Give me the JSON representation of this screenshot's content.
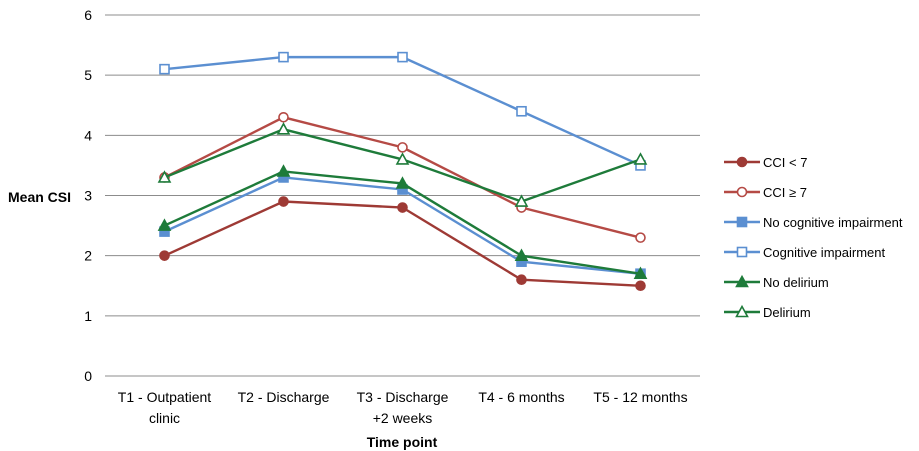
{
  "chart_data": {
    "type": "line",
    "title": "",
    "xlabel": "Time point",
    "ylabel": "Mean CSI",
    "ylim": [
      0,
      6
    ],
    "yticks": [
      "0",
      "1",
      "2",
      "3",
      "4",
      "5",
      "6"
    ],
    "grid": true,
    "legend_position": "right",
    "categories": [
      [
        "T1 - Outpatient",
        "clinic"
      ],
      [
        "T2 - Discharge"
      ],
      [
        "T3 - Discharge",
        "+2 weeks"
      ],
      [
        "T4 - 6 months"
      ],
      [
        "T5 - 12 months"
      ]
    ],
    "series": [
      {
        "name": "CCI < 7",
        "values": [
          2.0,
          2.9,
          2.8,
          1.6,
          1.5
        ],
        "color": "#9e3a35",
        "marker": "circle",
        "filled": true
      },
      {
        "name": "CCI ≥ 7",
        "values": [
          3.3,
          4.3,
          3.8,
          2.8,
          2.3
        ],
        "color": "#b54a45",
        "marker": "circle",
        "filled": false
      },
      {
        "name": "No cognitive impairment",
        "values": [
          2.4,
          3.3,
          3.1,
          1.9,
          1.7
        ],
        "color": "#5b8fd1",
        "marker": "square",
        "filled": true
      },
      {
        "name": "Cognitive impairment",
        "values": [
          5.1,
          5.3,
          5.3,
          4.4,
          3.5
        ],
        "color": "#5b8fd1",
        "marker": "square",
        "filled": false
      },
      {
        "name": "No delirium",
        "values": [
          2.5,
          3.4,
          3.2,
          2.0,
          1.7
        ],
        "color": "#1e7b3a",
        "marker": "triangle",
        "filled": true
      },
      {
        "name": "Delirium",
        "values": [
          3.3,
          4.1,
          3.6,
          2.9,
          3.6
        ],
        "color": "#1e7b3a",
        "marker": "triangle",
        "filled": false
      }
    ]
  }
}
